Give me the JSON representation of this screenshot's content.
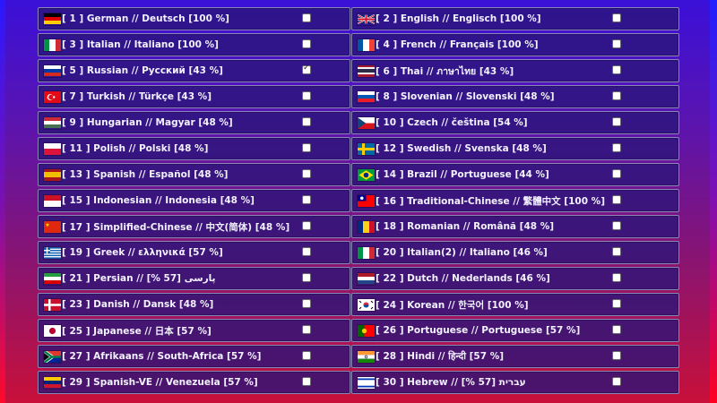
{
  "languages": [
    {
      "label": "[ 1 ] German // Deutsch   [100 %]",
      "checked": false
    },
    {
      "label": "[ 2 ] English // Englisch   [100 %]",
      "checked": false
    },
    {
      "label": "[ 3 ] Italian // Italiano  [100 %]",
      "checked": false
    },
    {
      "label": "[ 4 ] French // Français  [100 %]",
      "checked": false
    },
    {
      "label": "[ 5 ] Russian // Русский  [43 %]",
      "checked": true
    },
    {
      "label": "[ 6 ] Thai // ภาษาไทย  [43 %]",
      "checked": false
    },
    {
      "label": "[ 7 ] Turkish // Türkçe  [43 %]",
      "checked": false
    },
    {
      "label": "[ 8 ] Slovenian // Slovenski  [48 %]",
      "checked": false
    },
    {
      "label": "[ 9 ] Hungarian // Magyar  [48 %]",
      "checked": false
    },
    {
      "label": "[ 10 ] Czech // čeština  [54 %]",
      "checked": false
    },
    {
      "label": "[ 11 ] Polish // Polski  [48 %]",
      "checked": false
    },
    {
      "label": "[ 12 ] Swedish // Svenska  [48 %]",
      "checked": false
    },
    {
      "label": "[ 13 ] Spanish // Español  [48 %]",
      "checked": false
    },
    {
      "label": "[ 14 ] Brazil // Portuguese  [44 %]",
      "checked": false
    },
    {
      "label": "[ 15 ] Indonesian // Indonesia  [48 %]",
      "checked": false
    },
    {
      "label": "[ 16 ] Traditional-Chinese // 繁體中文  [100 %]",
      "checked": false
    },
    {
      "label": "[ 17 ] Simplified-Chinese // 中文(简体)  [48 %]",
      "checked": false
    },
    {
      "label": "[ 18 ] Romanian // Română  [48 %]",
      "checked": false
    },
    {
      "label": "[ 19 ] Greek // ελληνικά  [57 %]",
      "checked": false
    },
    {
      "label": "[ 20 ] Italian(2) // Italiano  [46 %]",
      "checked": false
    },
    {
      "label": "[ 21 ] Persian // پارسی  [57 %]",
      "checked": false
    },
    {
      "label": "[ 22 ] Dutch // Nederlands  [46 %]",
      "checked": false
    },
    {
      "label": "[ 23 ] Danish // Dansk  [48 %]",
      "checked": false
    },
    {
      "label": "[ 24 ] Korean // 한국어  [100 %]",
      "checked": false
    },
    {
      "label": "[ 25 ] Japanese // 日本  [57 %]",
      "checked": false
    },
    {
      "label": "[ 26 ] Portuguese // Portuguese  [57 %]",
      "checked": false
    },
    {
      "label": "[ 27 ] Afrikaans // South-Africa  [57 %]",
      "checked": false
    },
    {
      "label": "[ 28 ] Hindi // हिन्दी  [57 %]",
      "checked": false
    },
    {
      "label": "[ 29 ] Spanish-VE // Venezuela  [57 %]",
      "checked": false
    },
    {
      "label": "[ 30 ] Hebrew // עברית  [57 %]",
      "checked": false
    }
  ]
}
